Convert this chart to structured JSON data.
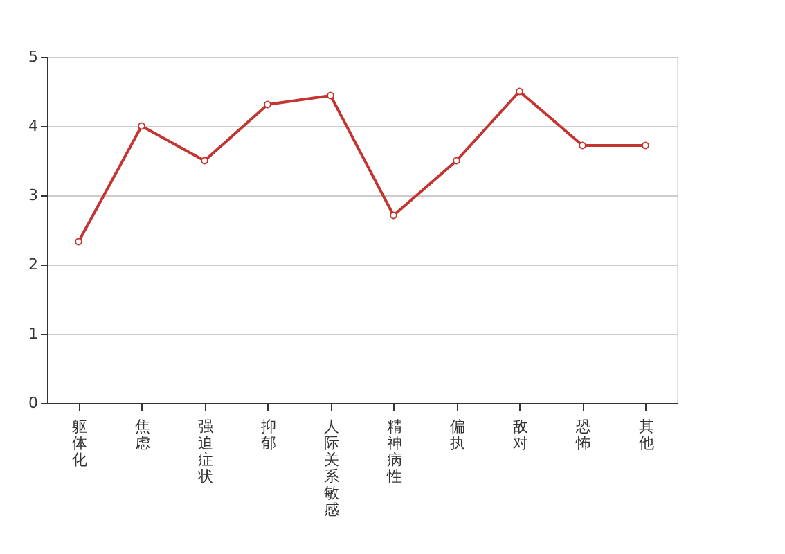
{
  "chart_data": {
    "type": "line",
    "categories": [
      "躯体化",
      "焦虑",
      "强迫症状",
      "抑郁",
      "人际关系敏感",
      "精神病性",
      "偏执",
      "敌对",
      "恐怖",
      "其他"
    ],
    "series": [
      {
        "color": "#c23531",
        "values": [
          2.33,
          4.0,
          3.5,
          4.31,
          4.44,
          2.71,
          3.5,
          4.5,
          3.72,
          3.72
        ]
      }
    ],
    "ylim": [
      0,
      5
    ],
    "yticks": [
      0,
      1,
      2,
      3,
      4,
      5
    ],
    "grid": "y",
    "marker": "circle",
    "line_style": "solid"
  }
}
